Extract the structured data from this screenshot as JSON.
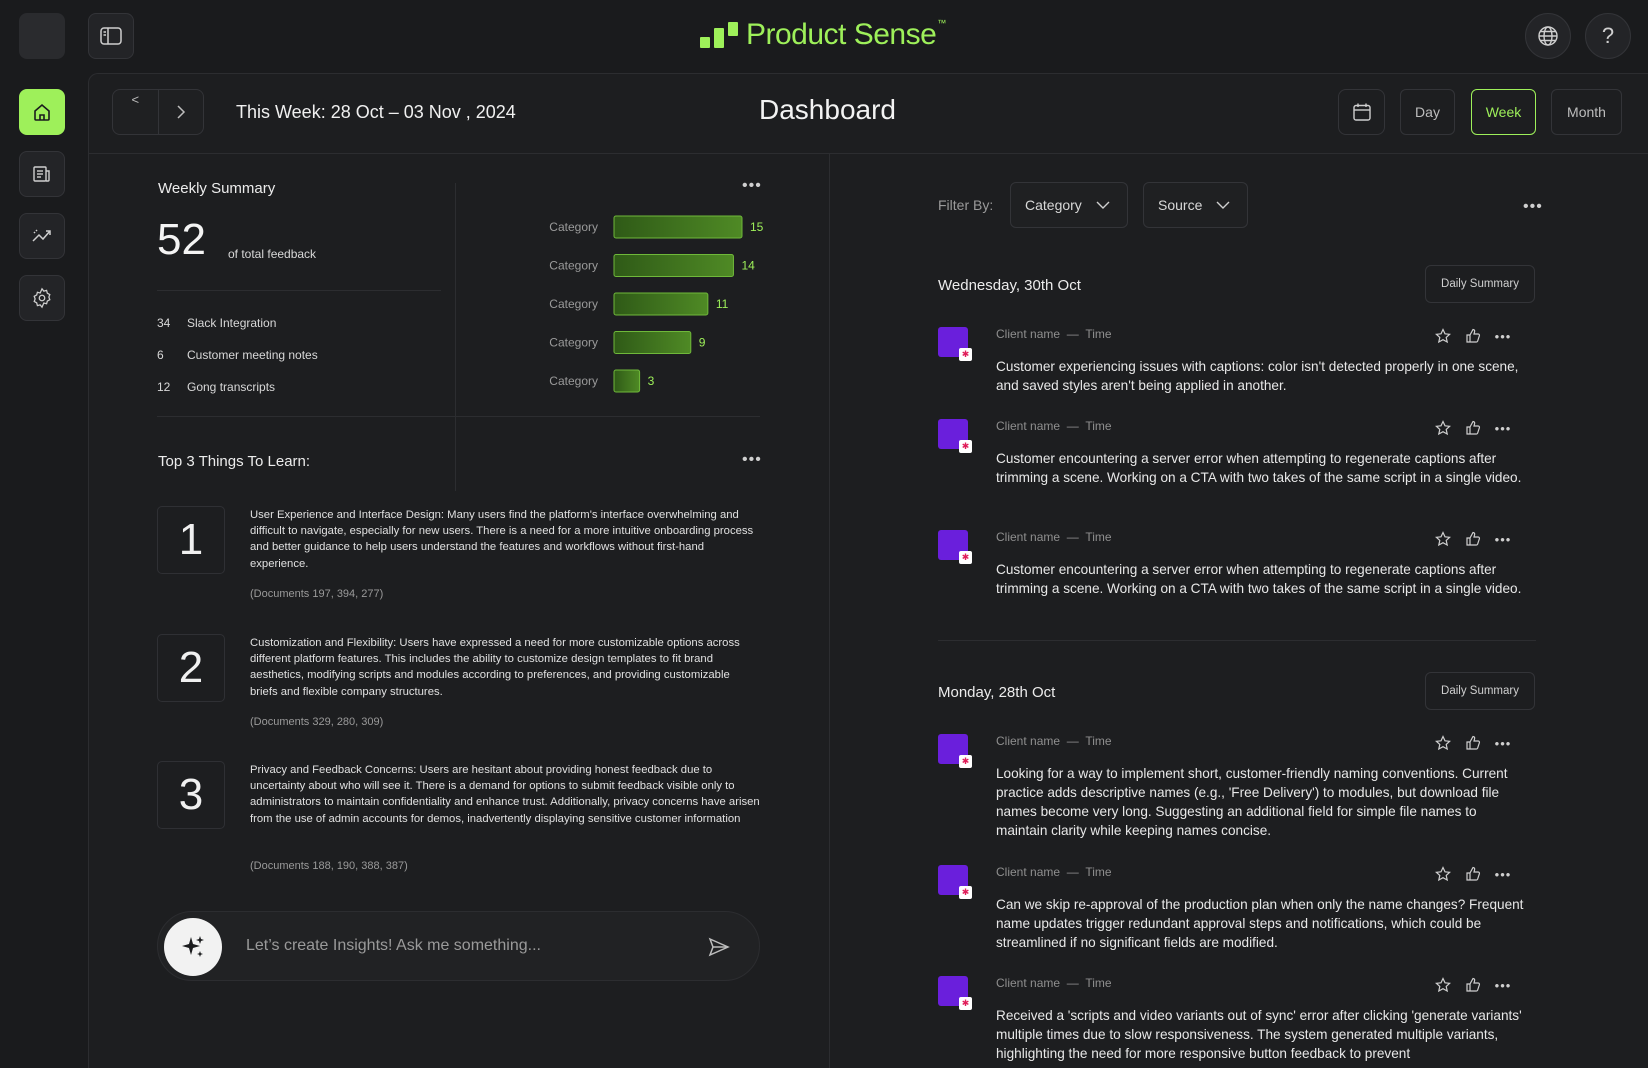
{
  "app": {
    "brand": "Product Sense",
    "brand_tm": "™",
    "colors": {
      "accent": "#9ef05a",
      "background": "#1a1b1d",
      "avatar": "#6a1fdc"
    }
  },
  "topbar": {
    "globe_icon": "globe-icon",
    "help_label": "?"
  },
  "nav": {
    "items": [
      "home-icon",
      "documents-icon",
      "insights-icon",
      "settings-icon"
    ],
    "active": "home-icon"
  },
  "header": {
    "prev_label": "<",
    "week_label": "This Week: 28 Oct – 03 Nov , 2024",
    "title": "Dashboard",
    "periods": [
      "Day",
      "Week",
      "Month"
    ],
    "active_period": "Week"
  },
  "weekly_summary": {
    "title": "Weekly Summary",
    "total": "52",
    "total_label": "of total feedback",
    "sources": [
      {
        "count": "34",
        "label": "Slack Integration"
      },
      {
        "count": "6",
        "label": "Customer meeting notes"
      },
      {
        "count": "12",
        "label": "Gong transcripts"
      }
    ]
  },
  "chart_data": {
    "type": "bar",
    "orientation": "horizontal",
    "categories": [
      "Category",
      "Category",
      "Category",
      "Category",
      "Category"
    ],
    "values": [
      15,
      14,
      11,
      9,
      3
    ],
    "title": "",
    "xlabel": "",
    "ylabel": "",
    "xlim": [
      0,
      15
    ],
    "grid": false,
    "bar_color": "#4f8a25",
    "label_color": "#9ef05a"
  },
  "learn": {
    "title": "Top 3 Things To Learn:",
    "items": [
      {
        "num": "1",
        "text": "User Experience and Interface Design: Many users find the platform's interface overwhelming and difficult to navigate, especially for new users. There is a need for a more intuitive onboarding process and better guidance to help users understand the features and workflows without first-hand experience.",
        "docs": "(Documents 197, 394, 277)"
      },
      {
        "num": "2",
        "text": "Customization and Flexibility: Users have expressed a need for more customizable options across different platform features. This includes the ability to customize design templates to fit brand aesthetics, modifying scripts and modules according to preferences, and providing customizable briefs and flexible company structures.",
        "docs": "(Documents 329, 280, 309)"
      },
      {
        "num": "3",
        "text": "Privacy and Feedback Concerns: Users are hesitant about providing honest feedback due to uncertainty about who will see it. There is a demand for options to submit feedback visible only to administrators to maintain confidentiality and enhance trust. Additionally, privacy concerns have arisen from the use of admin accounts for demos, inadvertently displaying sensitive customer information",
        "docs": "(Documents 188, 190, 388, 387)"
      }
    ]
  },
  "ask": {
    "placeholder": "Let’s create Insights! Ask me something..."
  },
  "filter": {
    "label": "Filter By:",
    "category": "Category",
    "source": "Source"
  },
  "days": [
    {
      "heading": "Wednesday, 30th Oct",
      "summary_label": "Daily Summary",
      "items": [
        {
          "client": "Client name",
          "sep": "—",
          "time": "Time",
          "text": "Customer experiencing issues with captions: color isn't detected properly in one scene, and saved styles aren't being applied in another."
        },
        {
          "client": "Client name",
          "sep": "—",
          "time": "Time",
          "text": "Customer encountering a server error when attempting to regenerate captions after trimming a scene. Working on a CTA with two takes of the same script in a single video."
        },
        {
          "client": "Client name",
          "sep": "—",
          "time": "Time",
          "text": "Customer encountering a server error when attempting to regenerate captions after trimming a scene. Working on a CTA with two takes of the same script in a single video."
        }
      ]
    },
    {
      "heading": "Monday, 28th Oct",
      "summary_label": "Daily Summary",
      "items": [
        {
          "client": "Client name",
          "sep": "—",
          "time": "Time",
          "text": "Looking for a way to implement short, customer-friendly naming conventions. Current practice adds descriptive names (e.g., 'Free Delivery') to modules, but download file names become very long. Suggesting an additional field for simple file names to maintain clarity while keeping names concise."
        },
        {
          "client": "Client name",
          "sep": "—",
          "time": "Time",
          "text": "Can we skip re-approval of the production plan when only the name changes? Frequent name updates trigger redundant approval steps and notifications, which could be streamlined if no significant fields are modified."
        },
        {
          "client": "Client name",
          "sep": "—",
          "time": "Time",
          "text": "Received a 'scripts and video variants out of sync' error after clicking 'generate variants' multiple times due to slow responsiveness. The system generated multiple variants, highlighting the need for more responsive button feedback to prevent"
        }
      ]
    }
  ]
}
